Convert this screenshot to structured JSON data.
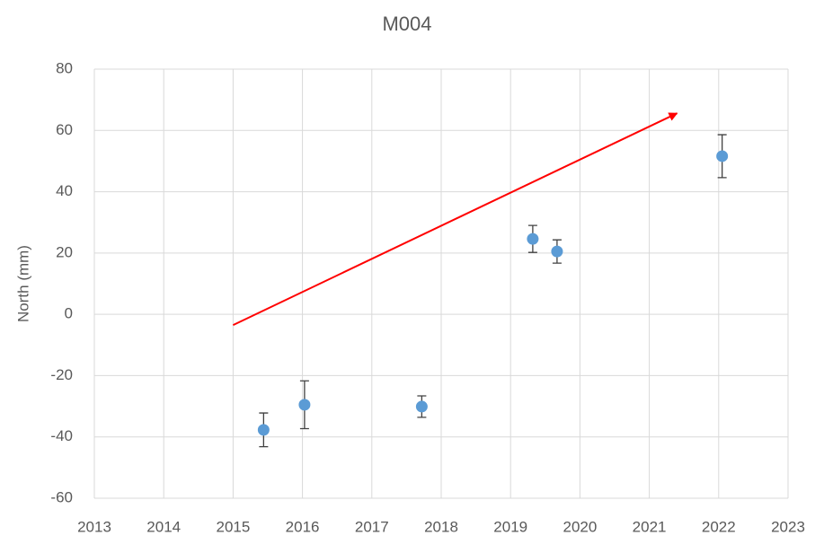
{
  "chart_data": {
    "type": "scatter",
    "title": "M004",
    "y_label": "North (mm)",
    "xlim": [
      2013,
      2023
    ],
    "xticks": [
      2013,
      2014,
      2015,
      2016,
      2017,
      2018,
      2019,
      2020,
      2021,
      2022,
      2023
    ],
    "ylim": [
      -60,
      80
    ],
    "yticks": [
      -60,
      -40,
      -20,
      0,
      20,
      40,
      60,
      80
    ],
    "grid": true,
    "series": [
      {
        "color": "#5b9bd5",
        "x": [
          2015.44,
          2016.03,
          2017.72,
          2019.32,
          2019.67,
          2022.05
        ],
        "values": [
          -37.7,
          -29.5,
          -30.1,
          24.6,
          20.5,
          51.6
        ],
        "errors": [
          5.5,
          7.8,
          3.5,
          4.4,
          3.8,
          7
        ]
      }
    ],
    "arrow": {
      "color": "#ff0000",
      "x": [
        2015,
        2021.4
      ],
      "y": [
        -3.5,
        65.6
      ]
    }
  }
}
